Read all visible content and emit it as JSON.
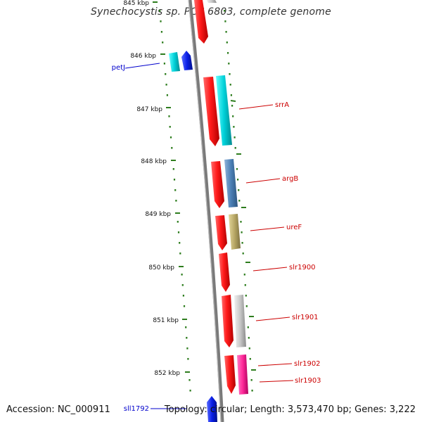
{
  "header": {
    "title": "Synechocystis sp. PCC 6803, complete genome"
  },
  "footer": {
    "accession": "Accession: NC_000911",
    "summary": "Topology: circular; Length: 3,573,470 bp; Genes: 3,222"
  },
  "colors": {
    "backbone": "#7a7a7a",
    "scale_ticks": "#2e7d1e",
    "forward_label": "#cc0000",
    "reverse_label": "#0000cc"
  },
  "scale_ticks": [
    {
      "label": "845 kbp"
    },
    {
      "label": "846 kbp"
    },
    {
      "label": "847 kbp"
    },
    {
      "label": "848 kbp"
    },
    {
      "label": "849 kbp"
    },
    {
      "label": "850 kbp"
    },
    {
      "label": "851 kbp"
    },
    {
      "label": "852 kbp"
    }
  ],
  "genes": [
    {
      "name": "",
      "strand": "+",
      "color": "#ff1a1a"
    },
    {
      "name": "petJ",
      "strand": "-",
      "color": "#00d8e0",
      "partner_color": "#0a1ee6"
    },
    {
      "name": "srrA",
      "strand": "+",
      "color": "#ff1a1a",
      "partner_color": "#00c8c8"
    },
    {
      "name": "argB",
      "strand": "+",
      "color": "#ff1a1a",
      "partner_color": "#4a7fb5"
    },
    {
      "name": "ureF",
      "strand": "+",
      "color": "#ff1a1a",
      "partner_color": "#b7a765"
    },
    {
      "name": "slr1900",
      "strand": "+",
      "color": "#ff1a1a"
    },
    {
      "name": "slr1901",
      "strand": "+",
      "color": "#ff1a1a",
      "partner_color": "#c8c8c8"
    },
    {
      "name": "slr1902",
      "strand": "+",
      "color": "#ff1a1a"
    },
    {
      "name": "slr1903",
      "strand": "+",
      "color": "#ff1a1a",
      "partner_color": "#ff2a9a"
    },
    {
      "name": "sll1792",
      "strand": "-",
      "color": "#0a1ee6"
    }
  ]
}
